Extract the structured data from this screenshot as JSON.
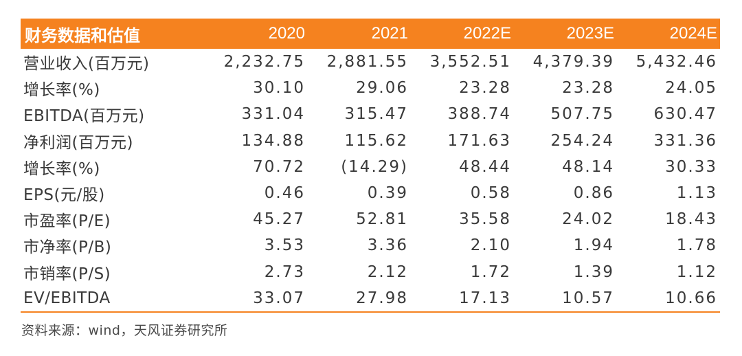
{
  "table": {
    "header": {
      "label": "财务数据和估值",
      "years": [
        "2020",
        "2021",
        "2022E",
        "2023E",
        "2024E"
      ]
    },
    "accent_color": "#f5821f",
    "rows": [
      {
        "label": "营业收入(百万元)",
        "values": [
          "2,232.75",
          "2,881.55",
          "3,552.51",
          "4,379.39",
          "5,432.46"
        ]
      },
      {
        "label": "增长率(%)",
        "values": [
          "30.10",
          "29.06",
          "23.28",
          "23.28",
          "24.05"
        ]
      },
      {
        "label": "EBITDA(百万元)",
        "values": [
          "331.04",
          "315.47",
          "388.74",
          "507.75",
          "630.47"
        ]
      },
      {
        "label": "净利润(百万元)",
        "values": [
          "134.88",
          "115.62",
          "171.63",
          "254.24",
          "331.36"
        ]
      },
      {
        "label": "增长率(%)",
        "values": [
          "70.72",
          "(14.29)",
          "48.44",
          "48.14",
          "30.33"
        ]
      },
      {
        "label": "EPS(元/股)",
        "values": [
          "0.46",
          "0.39",
          "0.58",
          "0.86",
          "1.13"
        ]
      },
      {
        "label": "市盈率(P/E)",
        "values": [
          "45.27",
          "52.81",
          "35.58",
          "24.02",
          "18.43"
        ]
      },
      {
        "label": "市净率(P/B)",
        "values": [
          "3.53",
          "3.36",
          "2.10",
          "1.94",
          "1.78"
        ]
      },
      {
        "label": "市销率(P/S)",
        "values": [
          "2.73",
          "2.12",
          "1.72",
          "1.39",
          "1.12"
        ]
      },
      {
        "label": "EV/EBITDA",
        "values": [
          "33.07",
          "27.98",
          "17.13",
          "10.57",
          "10.66"
        ]
      }
    ]
  },
  "source": "资料来源：wind，天风证券研究所"
}
